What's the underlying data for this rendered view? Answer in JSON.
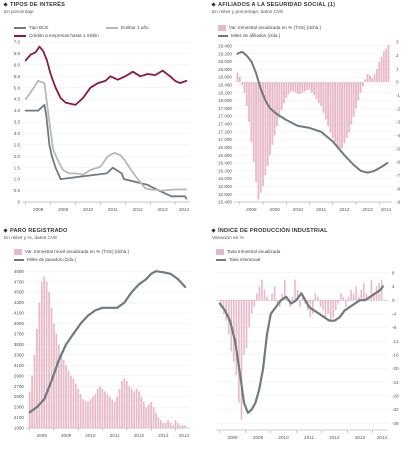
{
  "colors": {
    "maroon": "#8b1a3c",
    "gray": "#8c8c8c",
    "lightgray": "#b8b8b8",
    "pink": "#e7b9c6",
    "darkgray": "#6f7b80"
  },
  "panels": {
    "tipos": {
      "title": "TIPOS DE INTERÉS",
      "subtitle": "En porcentaje",
      "legend": [
        "Tipo BCE",
        "Euribor 1 año",
        "Crédito a empresas hasta 1 millón"
      ]
    },
    "afiliados": {
      "title": "AFILIADOS A LA SEGURIDAD SOCIAL (1)",
      "subtitle": "En miles y porcentaje, datos CVE",
      "legend": [
        "Var. trimestral anualizada en % (TSS) (dcha.)",
        "Miles de afiliados (izda.)"
      ]
    },
    "paro": {
      "title": "PARO REGISTRADO",
      "subtitle": "En miles y %, datos CVE",
      "legend": [
        "Var. trimestral móvil anualizada en % (TSS) (dcha.)",
        "Miles de parados (izda.)"
      ]
    },
    "industria": {
      "title": "ÍNDICE DE PRODUCCIÓN INDUSTRIAL",
      "subtitle": "Variación en %",
      "legend": [
        "Tasa trimestral anualizada",
        "Tasa interanual"
      ]
    }
  },
  "chart_data": [
    {
      "id": "tipos",
      "type": "line",
      "title": "TIPOS DE INTERÉS",
      "ylabel": "En porcentaje",
      "ylim": [
        0,
        7
      ],
      "yticks": [
        "0",
        "0.5",
        "1.0",
        "1.5",
        "2.0",
        "2.5",
        "3.0",
        "3.5",
        "4.0",
        "4.5",
        "5.0",
        "5.5",
        "6.0",
        "6.5",
        "7.0"
      ],
      "xlim": [
        2007.85,
        2014.6
      ],
      "xticks": [
        "2008",
        "2009",
        "2010",
        "2011",
        "2012",
        "2013",
        "2014"
      ],
      "series": [
        {
          "name": "Tipo BCE",
          "color": "#6f7b80",
          "x": [
            2008.0,
            2008.5,
            2008.75,
            2008.83,
            2008.95,
            2009.05,
            2009.2,
            2009.4,
            2011.25,
            2011.5,
            2011.85,
            2011.95,
            2012.9,
            2013.35,
            2013.85,
            2014.4,
            2014.45
          ],
          "y": [
            4.0,
            4.0,
            4.25,
            3.75,
            2.5,
            2.0,
            1.5,
            1.0,
            1.25,
            1.5,
            1.25,
            1.0,
            0.75,
            0.5,
            0.25,
            0.25,
            0.15
          ]
        },
        {
          "name": "Euribor 1 año",
          "color": "#b8b8b8",
          "x": [
            2008.0,
            2008.2,
            2008.5,
            2008.75,
            2008.95,
            2009.1,
            2009.3,
            2009.5,
            2009.75,
            2010.0,
            2010.3,
            2010.6,
            2011.0,
            2011.3,
            2011.55,
            2011.8,
            2012.0,
            2012.2,
            2012.5,
            2012.8,
            2013.0,
            2013.5,
            2014.0,
            2014.45
          ],
          "y": [
            4.5,
            4.8,
            5.3,
            5.2,
            3.5,
            2.3,
            1.8,
            1.4,
            1.25,
            1.25,
            1.2,
            1.4,
            1.55,
            2.0,
            2.15,
            2.05,
            1.8,
            1.45,
            1.0,
            0.6,
            0.55,
            0.5,
            0.55,
            0.55
          ]
        },
        {
          "name": "Crédito a empresas hasta 1 millón",
          "color": "#8b1a3c",
          "x": [
            2008.0,
            2008.2,
            2008.4,
            2008.55,
            2008.7,
            2008.85,
            2009.0,
            2009.2,
            2009.4,
            2009.6,
            2009.8,
            2010.0,
            2010.3,
            2010.6,
            2010.9,
            2011.2,
            2011.4,
            2011.7,
            2012.0,
            2012.3,
            2012.6,
            2012.9,
            2013.2,
            2013.5,
            2013.8,
            2014.0,
            2014.2,
            2014.45
          ],
          "y": [
            6.2,
            6.45,
            6.55,
            6.8,
            6.6,
            6.2,
            5.6,
            5.0,
            4.55,
            4.35,
            4.3,
            4.25,
            4.55,
            5.0,
            5.2,
            5.3,
            5.5,
            5.35,
            5.5,
            5.7,
            5.5,
            5.6,
            5.55,
            5.75,
            5.5,
            5.3,
            5.2,
            5.3
          ]
        }
      ]
    },
    {
      "id": "afiliados",
      "type": "bar+line",
      "title": "AFILIADOS A LA SEGURIDAD SOCIAL (1)",
      "ylim_left": [
        15400,
        19500
      ],
      "yticks_left": [
        "15.400",
        "15.600",
        "15.800",
        "16.000",
        "16.200",
        "16.400",
        "16.600",
        "16.800",
        "17.000",
        "17.200",
        "17.400",
        "17.600",
        "17.800",
        "18.000",
        "18.200",
        "18.400",
        "18.600",
        "18.800",
        "19.000",
        "19.200",
        "19.400"
      ],
      "ylim_right": [
        -9,
        3
      ],
      "yticks_right": [
        "3",
        "2",
        "1",
        "0",
        "-1",
        "-2",
        "-3",
        "-4",
        "-5",
        "-6",
        "-7",
        "-8",
        "-9"
      ],
      "xlim": [
        2007.75,
        2014.55
      ],
      "xticks": [
        "2008",
        "2009",
        "2010",
        "2011",
        "2012",
        "2013",
        "2014"
      ],
      "series": [
        {
          "name": "Var. trimestral anualizada en % (TSS) (dcha.)",
          "color": "#e7b9c6",
          "x": [
            2007.9,
            2008.0,
            2008.1,
            2008.2,
            2008.3,
            2008.4,
            2008.5,
            2008.6,
            2008.7,
            2008.8,
            2008.9,
            2009.0,
            2009.1,
            2009.2,
            2009.3,
            2009.4,
            2009.5,
            2009.6,
            2009.7,
            2009.8,
            2009.9,
            2010.0,
            2010.1,
            2010.2,
            2010.3,
            2010.4,
            2010.5,
            2010.6,
            2010.7,
            2010.8,
            2010.9,
            2011.0,
            2011.1,
            2011.2,
            2011.3,
            2011.4,
            2011.5,
            2011.6,
            2011.7,
            2011.8,
            2011.9,
            2012.0,
            2012.1,
            2012.2,
            2012.3,
            2012.4,
            2012.5,
            2012.6,
            2012.7,
            2012.8,
            2012.9,
            2013.0,
            2013.1,
            2013.2,
            2013.3,
            2013.4,
            2013.5,
            2013.6,
            2013.7,
            2013.8,
            2013.9,
            2014.0,
            2014.1,
            2014.2,
            2014.3,
            2014.4
          ],
          "y": [
            0.7,
            0.4,
            -0.2,
            -0.8,
            -1.8,
            -3.0,
            -4.5,
            -6.0,
            -7.5,
            -8.8,
            -8.3,
            -7.8,
            -7.0,
            -6.3,
            -5.5,
            -4.7,
            -4.0,
            -3.3,
            -2.7,
            -2.1,
            -1.6,
            -1.2,
            -0.9,
            -0.7,
            -0.7,
            -0.8,
            -0.9,
            -0.9,
            -0.8,
            -0.7,
            -0.6,
            -0.6,
            -0.8,
            -1.0,
            -1.3,
            -1.6,
            -1.8,
            -2.3,
            -2.8,
            -3.3,
            -3.8,
            -4.2,
            -4.5,
            -4.9,
            -5.0,
            -5.0,
            -4.6,
            -4.2,
            -3.8,
            -3.2,
            -2.6,
            -2.0,
            -1.4,
            -0.8,
            -0.3,
            0.2,
            0.6,
            0.5,
            0.3,
            0.6,
            1.0,
            1.5,
            1.9,
            2.3,
            2.5,
            2.8
          ]
        },
        {
          "name": "Miles de afiliados (izda.)",
          "color": "#6f7b80",
          "x": [
            2007.9,
            2008.1,
            2008.3,
            2008.5,
            2008.7,
            2008.9,
            2009.1,
            2009.3,
            2009.6,
            2010.0,
            2010.5,
            2011.0,
            2011.5,
            2012.0,
            2012.5,
            2012.9,
            2013.2,
            2013.5,
            2013.8,
            2014.1,
            2014.35
          ],
          "y": [
            19200,
            19250,
            19150,
            19000,
            18700,
            18300,
            18000,
            17800,
            17650,
            17500,
            17350,
            17300,
            17200,
            16950,
            16600,
            16350,
            16200,
            16150,
            16200,
            16300,
            16400
          ]
        }
      ]
    },
    {
      "id": "paro",
      "type": "bar+line",
      "title": "PARO REGISTRADO",
      "ylim_left": [
        1900,
        5000
      ],
      "yticks_left": [
        "1900",
        "2100",
        "2300",
        "2500",
        "2700",
        "2900",
        "3100",
        "3300",
        "3500",
        "3700",
        "3900",
        "4100",
        "4300",
        "4500",
        "4700",
        "4900"
      ],
      "xlim": [
        2007.85,
        2014.6
      ],
      "xticks": [
        "2008",
        "2009",
        "2010",
        "2011",
        "2012",
        "2013",
        "2014"
      ],
      "series": [
        {
          "name": "Var. trimestral móvil anualizada en % (TSS) (dcha.)",
          "color": "#e7b9c6",
          "x": [
            2008.0,
            2008.1,
            2008.2,
            2008.3,
            2008.4,
            2008.5,
            2008.6,
            2008.7,
            2008.8,
            2008.9,
            2009.0,
            2009.1,
            2009.2,
            2009.3,
            2009.4,
            2009.5,
            2009.6,
            2009.7,
            2009.8,
            2009.9,
            2010.0,
            2010.1,
            2010.2,
            2010.3,
            2010.4,
            2010.5,
            2010.6,
            2010.7,
            2010.8,
            2010.9,
            2011.0,
            2011.1,
            2011.2,
            2011.3,
            2011.4,
            2011.5,
            2011.6,
            2011.7,
            2011.8,
            2011.9,
            2012.0,
            2012.1,
            2012.2,
            2012.3,
            2012.4,
            2012.5,
            2012.6,
            2012.7,
            2012.8,
            2012.9,
            2013.0,
            2013.1,
            2013.2,
            2013.3,
            2013.4,
            2013.5,
            2013.6,
            2013.7,
            2013.8,
            2013.9,
            2014.0,
            2014.1,
            2014.2,
            2014.3,
            2014.4
          ],
          "y": [
            2600,
            2900,
            3300,
            3800,
            4300,
            4700,
            4800,
            4700,
            4500,
            4200,
            3900,
            3700,
            3500,
            3300,
            3200,
            3100,
            3000,
            2900,
            2850,
            2750,
            2650,
            2550,
            2450,
            2420,
            2400,
            2450,
            2500,
            2550,
            2650,
            2700,
            2650,
            2600,
            2550,
            2500,
            2450,
            2400,
            2500,
            2650,
            2800,
            2850,
            2800,
            2700,
            2650,
            2600,
            2650,
            2600,
            2500,
            2400,
            2300,
            2350,
            2400,
            2300,
            2200,
            2100,
            2050,
            2000,
            2000,
            2050,
            2000,
            1950,
            2050,
            2000,
            1950,
            1950,
            1950
          ]
        },
        {
          "name": "Miles de parados (izda.)",
          "color": "#6f7b80",
          "x": [
            2008.0,
            2008.3,
            2008.6,
            2008.9,
            2009.2,
            2009.5,
            2009.8,
            2010.1,
            2010.4,
            2010.7,
            2011.0,
            2011.3,
            2011.6,
            2011.9,
            2012.2,
            2012.5,
            2012.8,
            2013.0,
            2013.2,
            2013.5,
            2013.8,
            2014.1,
            2014.4
          ],
          "y": [
            2200,
            2300,
            2450,
            2800,
            3200,
            3500,
            3700,
            3900,
            4050,
            4150,
            4200,
            4200,
            4200,
            4300,
            4500,
            4650,
            4750,
            4850,
            4900,
            4880,
            4850,
            4750,
            4600
          ]
        }
      ]
    },
    {
      "id": "industria",
      "type": "bar+line",
      "title": "ÍNDICE DE PRODUCCIÓN INDUSTRIAL",
      "ylim": [
        -38,
        10
      ],
      "yticks": [
        "8",
        "4",
        "0",
        "-4",
        "-8",
        "-12",
        "-16",
        "-20",
        "-24",
        "-28",
        "-32",
        "-36"
      ],
      "xlim": [
        2007.85,
        2014.6
      ],
      "xticks": [
        "2008",
        "2009",
        "2010",
        "2011",
        "2012",
        "2013",
        "2014"
      ],
      "series": [
        {
          "name": "Tasa trimestral anualizada",
          "color": "#e7b9c6",
          "x": [
            2008.05,
            2008.15,
            2008.25,
            2008.35,
            2008.45,
            2008.55,
            2008.65,
            2008.75,
            2008.85,
            2008.95,
            2009.05,
            2009.15,
            2009.25,
            2009.35,
            2009.45,
            2009.55,
            2009.65,
            2009.75,
            2009.85,
            2009.95,
            2010.05,
            2010.15,
            2010.25,
            2010.35,
            2010.45,
            2010.55,
            2010.65,
            2010.75,
            2010.85,
            2010.95,
            2011.05,
            2011.15,
            2011.25,
            2011.35,
            2011.45,
            2011.55,
            2011.65,
            2011.75,
            2011.85,
            2011.95,
            2012.05,
            2012.15,
            2012.25,
            2012.35,
            2012.45,
            2012.55,
            2012.65,
            2012.75,
            2012.85,
            2012.95,
            2013.05,
            2013.15,
            2013.25,
            2013.35,
            2013.45,
            2013.55,
            2013.65,
            2013.75,
            2013.85,
            2013.95,
            2014.05,
            2014.15,
            2014.25,
            2014.35
          ],
          "y": [
            -2,
            -4,
            -6,
            -10,
            -15,
            -18,
            -22,
            -30,
            -35,
            -16,
            -14,
            -8,
            -4,
            -2,
            2,
            4,
            6,
            3,
            1,
            0,
            2,
            4,
            -1,
            -2,
            2,
            6,
            0,
            -2,
            1,
            6,
            3,
            -2,
            1,
            -1,
            -3,
            -5,
            -4,
            2,
            1,
            -2,
            -3,
            -5,
            -4,
            -6,
            -5,
            -3,
            -1,
            2,
            1,
            -2,
            1,
            3,
            2,
            4,
            1,
            3,
            5,
            2,
            1,
            6,
            2,
            4,
            5,
            6
          ]
        },
        {
          "name": "Tasa interanual",
          "color": "#6f7b80",
          "x": [
            2008.0,
            2008.2,
            2008.4,
            2008.6,
            2008.8,
            2008.95,
            2009.1,
            2009.25,
            2009.4,
            2009.55,
            2009.7,
            2009.85,
            2010.0,
            2010.2,
            2010.4,
            2010.6,
            2010.8,
            2011.0,
            2011.2,
            2011.35,
            2011.5,
            2011.7,
            2011.9,
            2012.1,
            2012.3,
            2012.5,
            2012.7,
            2012.9,
            2013.1,
            2013.3,
            2013.5,
            2013.7,
            2013.9,
            2014.1,
            2014.3,
            2014.4
          ],
          "y": [
            -1,
            -3,
            -6,
            -12,
            -22,
            -30,
            -33,
            -32,
            -30,
            -26,
            -20,
            -10,
            -4,
            -2,
            0,
            1,
            -1,
            0,
            2,
            0,
            -2,
            -3,
            -4,
            -5,
            -6,
            -6,
            -5,
            -3,
            -2,
            -1,
            0,
            0,
            1,
            2,
            3,
            4
          ]
        }
      ]
    }
  ]
}
